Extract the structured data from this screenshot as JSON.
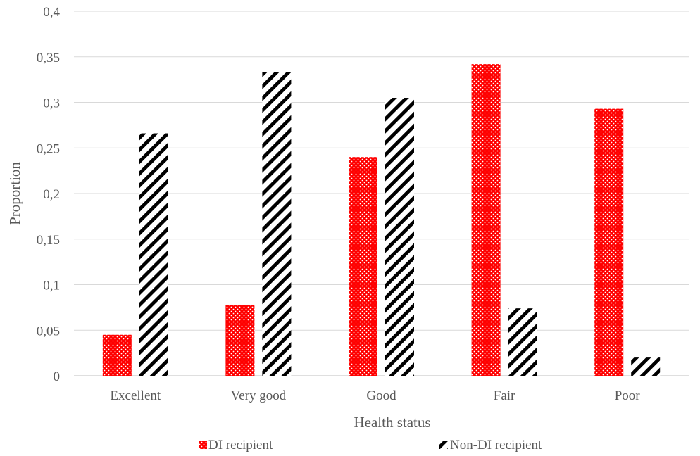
{
  "chart_data": {
    "type": "bar",
    "title": "",
    "xlabel": "Health status",
    "ylabel": "Proportion",
    "categories": [
      "Excellent",
      "Very good",
      "Good",
      "Fair",
      "Poor"
    ],
    "series": [
      {
        "name": "DI recipient",
        "values": [
          0.045,
          0.078,
          0.24,
          0.342,
          0.293
        ],
        "color": "#ff0000",
        "pattern": "dotted"
      },
      {
        "name": "Non-DI recipient",
        "values": [
          0.266,
          0.333,
          0.305,
          0.074,
          0.02
        ],
        "color": "#000000",
        "pattern": "diagonal-stripes"
      }
    ],
    "ylim": [
      0,
      0.4
    ],
    "yticks": [
      0,
      0.05,
      0.1,
      0.15,
      0.2,
      0.25,
      0.3,
      0.35,
      0.4
    ],
    "ytick_labels": [
      "0",
      "0,05",
      "0,1",
      "0,15",
      "0,2",
      "0,25",
      "0,3",
      "0,35",
      "0,4"
    ],
    "grid": true,
    "legend_position": "bottom"
  }
}
